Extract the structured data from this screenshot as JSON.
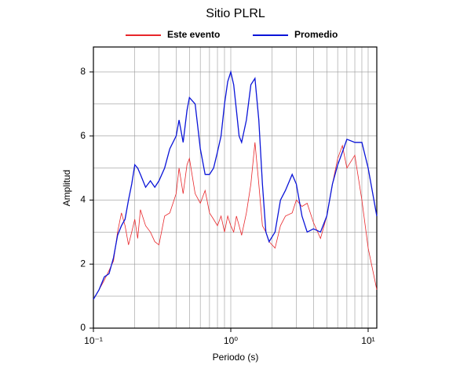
{
  "chart_data": {
    "type": "line",
    "title": "Sitio PLRL",
    "xlabel": "Periodo (s)",
    "ylabel": "Amplitud",
    "xscale": "log",
    "grid": true,
    "xlim": [
      0.1,
      11.56
    ],
    "xticks": [
      {
        "value": 0.1,
        "label": "10⁻¹"
      },
      {
        "value": 1,
        "label": "10⁰"
      },
      {
        "value": 10,
        "label": "10¹"
      }
    ],
    "xminor": [
      0.2,
      0.3,
      0.4,
      0.5,
      0.6,
      0.7,
      0.8,
      0.9,
      2,
      3,
      4,
      5,
      6,
      7,
      8,
      9
    ],
    "ylim": [
      0,
      8.78
    ],
    "yticks": [
      0,
      2,
      4,
      6,
      8
    ],
    "yminor": [
      1,
      3,
      5,
      7
    ],
    "x": [
      0.1,
      0.11,
      0.12,
      0.13,
      0.14,
      0.15,
      0.16,
      0.17,
      0.18,
      0.19,
      0.2,
      0.21,
      0.22,
      0.24,
      0.26,
      0.28,
      0.3,
      0.33,
      0.36,
      0.4,
      0.42,
      0.45,
      0.48,
      0.5,
      0.55,
      0.6,
      0.65,
      0.7,
      0.75,
      0.8,
      0.85,
      0.9,
      0.95,
      1.0,
      1.05,
      1.1,
      1.15,
      1.2,
      1.3,
      1.4,
      1.5,
      1.6,
      1.7,
      1.8,
      1.9,
      2.1,
      2.3,
      2.5,
      2.8,
      3.0,
      3.3,
      3.6,
      4.0,
      4.5,
      5.0,
      5.5,
      6.0,
      6.5,
      7.0,
      8.0,
      9.0,
      10.0,
      11.56
    ],
    "series": [
      {
        "name": "Este evento",
        "color": "#e8262a",
        "values": [
          0.9,
          1.2,
          1.5,
          1.8,
          2.1,
          3.0,
          3.6,
          3.2,
          2.6,
          3.0,
          3.4,
          2.8,
          3.7,
          3.2,
          3.0,
          2.7,
          2.6,
          3.5,
          3.6,
          4.2,
          5.0,
          4.2,
          5.1,
          5.3,
          4.2,
          3.9,
          4.3,
          3.6,
          3.4,
          3.2,
          3.5,
          3.0,
          3.5,
          3.2,
          3.0,
          3.5,
          3.2,
          2.9,
          3.6,
          4.5,
          5.8,
          4.5,
          3.2,
          3.0,
          2.7,
          2.5,
          3.2,
          3.5,
          3.6,
          4.0,
          3.8,
          3.9,
          3.3,
          2.8,
          3.5,
          4.5,
          5.3,
          5.7,
          5.0,
          5.4,
          4.0,
          2.5,
          1.2
        ]
      },
      {
        "name": "Promedio",
        "color": "#0a14d8",
        "values": [
          0.9,
          1.2,
          1.6,
          1.7,
          2.2,
          2.9,
          3.2,
          3.4,
          4.0,
          4.5,
          5.1,
          5.0,
          4.8,
          4.4,
          4.6,
          4.4,
          4.6,
          5.0,
          5.6,
          6.0,
          6.5,
          5.8,
          6.8,
          7.2,
          7.0,
          5.6,
          4.8,
          4.8,
          5.0,
          5.5,
          6.0,
          7.0,
          7.7,
          8.0,
          7.6,
          6.8,
          6.0,
          5.8,
          6.5,
          7.6,
          7.8,
          6.5,
          4.5,
          3.0,
          2.7,
          3.0,
          4.0,
          4.3,
          4.8,
          4.5,
          3.5,
          3.0,
          3.1,
          3.0,
          3.5,
          4.5,
          5.1,
          5.5,
          5.9,
          5.8,
          5.8,
          5.0,
          3.5
        ]
      }
    ]
  }
}
